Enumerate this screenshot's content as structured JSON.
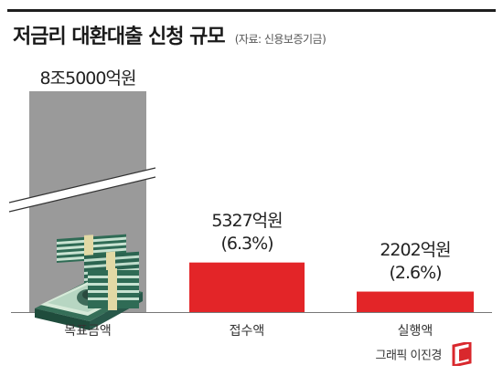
{
  "header": {
    "title": "저금리 대환대출 신청 규모",
    "source": "(자료: 신용보증기금)"
  },
  "chart_data": {
    "type": "bar",
    "title": "저금리 대환대출 신청 규모",
    "categories": [
      "목표금액",
      "접수액",
      "실행액"
    ],
    "values": [
      85000,
      5327,
      2202
    ],
    "unit": "억원",
    "value_labels": [
      "8조5000억원",
      "5327억원",
      "2202억원"
    ],
    "percent_labels": [
      "",
      "(6.3%)",
      "(2.6%)"
    ],
    "axis_break": true,
    "colors": {
      "target": "#9a9a9a",
      "bars": "#e32528",
      "baseline": "#777777"
    }
  },
  "credit": {
    "text": "그래픽 이진경",
    "logo_color": "#d9282d"
  }
}
